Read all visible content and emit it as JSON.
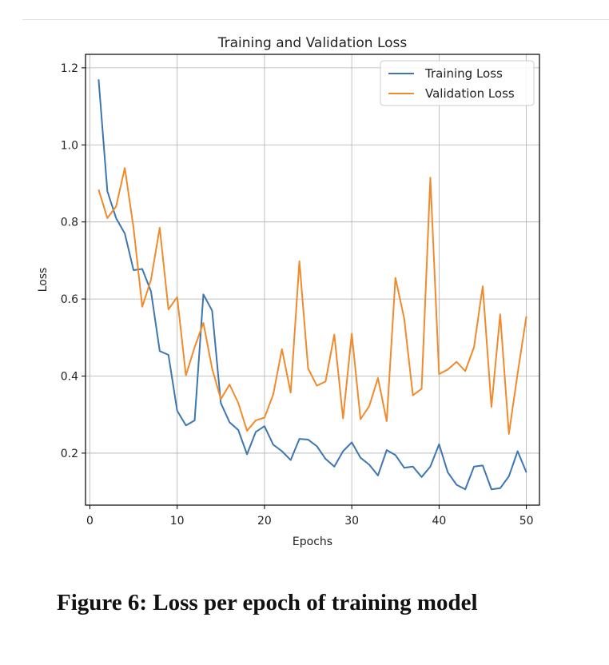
{
  "figure": {
    "caption": "Figure 6: Loss per epoch of training model"
  },
  "chart_data": {
    "type": "line",
    "title": "Training and Validation Loss",
    "xlabel": "Epochs",
    "ylabel": "Loss",
    "xlim": [
      -0.5,
      51.5
    ],
    "ylim": [
      0.065,
      1.235
    ],
    "xticks": [
      0,
      10,
      20,
      30,
      40,
      50
    ],
    "xtick_labels": [
      "0",
      "10",
      "20",
      "30",
      "40",
      "50"
    ],
    "yticks": [
      0.2,
      0.4,
      0.6,
      0.8,
      1.0,
      1.2
    ],
    "ytick_labels": [
      "0.2",
      "0.4",
      "0.6",
      "0.8",
      "1.0",
      "1.2"
    ],
    "grid": true,
    "legend_position": "top-right",
    "x": [
      1,
      2,
      3,
      4,
      5,
      6,
      7,
      8,
      9,
      10,
      11,
      12,
      13,
      14,
      15,
      16,
      17,
      18,
      19,
      20,
      21,
      22,
      23,
      24,
      25,
      26,
      27,
      28,
      29,
      30,
      31,
      32,
      33,
      34,
      35,
      36,
      37,
      38,
      39,
      40,
      41,
      42,
      43,
      44,
      45,
      46,
      47,
      48,
      49,
      50
    ],
    "series": [
      {
        "name": "Training Loss",
        "color": "#3d76b2",
        "values": [
          1.17,
          0.88,
          0.81,
          0.77,
          0.675,
          0.678,
          0.62,
          0.465,
          0.455,
          0.31,
          0.272,
          0.285,
          0.612,
          0.57,
          0.33,
          0.28,
          0.26,
          0.197,
          0.255,
          0.27,
          0.222,
          0.205,
          0.182,
          0.237,
          0.235,
          0.218,
          0.185,
          0.165,
          0.205,
          0.228,
          0.188,
          0.17,
          0.142,
          0.208,
          0.195,
          0.162,
          0.165,
          0.138,
          0.165,
          0.223,
          0.15,
          0.118,
          0.106,
          0.165,
          0.168,
          0.106,
          0.109,
          0.14,
          0.205,
          0.15
        ]
      },
      {
        "name": "Validation Loss",
        "color": "#f08a2b",
        "values": [
          0.884,
          0.81,
          0.84,
          0.94,
          0.785,
          0.58,
          0.65,
          0.785,
          0.573,
          0.605,
          0.402,
          0.475,
          0.538,
          0.42,
          0.34,
          0.378,
          0.33,
          0.258,
          0.285,
          0.292,
          0.352,
          0.47,
          0.357,
          0.698,
          0.42,
          0.375,
          0.386,
          0.508,
          0.29,
          0.51,
          0.288,
          0.322,
          0.395,
          0.283,
          0.655,
          0.55,
          0.35,
          0.367,
          0.915,
          0.405,
          0.417,
          0.437,
          0.413,
          0.475,
          0.633,
          0.32,
          0.56,
          0.25,
          0.407,
          0.555
        ]
      }
    ]
  }
}
